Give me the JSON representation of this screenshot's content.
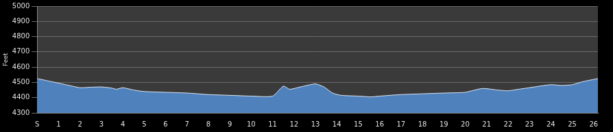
{
  "chart_data": {
    "type": "area",
    "y_label": "Feet",
    "x": [
      0,
      0.5,
      1,
      1.5,
      2,
      2.5,
      3,
      3.5,
      3.7,
      4,
      4.5,
      5,
      6,
      7,
      8,
      9,
      10,
      11,
      11.5,
      11.8,
      12.3,
      13,
      13.4,
      13.8,
      14.2,
      15,
      15.6,
      16,
      17,
      18,
      19,
      20,
      20.8,
      21.5,
      22,
      22.5,
      23,
      24,
      24.5,
      25,
      25.5,
      26.2
    ],
    "values": [
      4525,
      4510,
      4495,
      4480,
      4465,
      4468,
      4470,
      4462,
      4455,
      4465,
      4450,
      4440,
      4435,
      4430,
      4420,
      4415,
      4410,
      4410,
      4475,
      4455,
      4470,
      4490,
      4470,
      4430,
      4415,
      4410,
      4405,
      4410,
      4420,
      4425,
      4430,
      4435,
      4460,
      4450,
      4445,
      4455,
      4465,
      4485,
      4480,
      4485,
      4505,
      4525
    ],
    "color": "#4f81bd",
    "xlim": [
      0,
      26.2
    ],
    "xticks": [
      {
        "value": 0,
        "label": "S"
      },
      1,
      2,
      3,
      4,
      5,
      6,
      7,
      8,
      9,
      10,
      11,
      12,
      13,
      14,
      15,
      16,
      17,
      18,
      19,
      20,
      21,
      22,
      23,
      24,
      25,
      26
    ],
    "ylim": [
      4300,
      5000
    ],
    "yticks": [
      4300,
      4400,
      4500,
      4600,
      4700,
      4800,
      4900,
      5000
    ],
    "grid": true
  }
}
